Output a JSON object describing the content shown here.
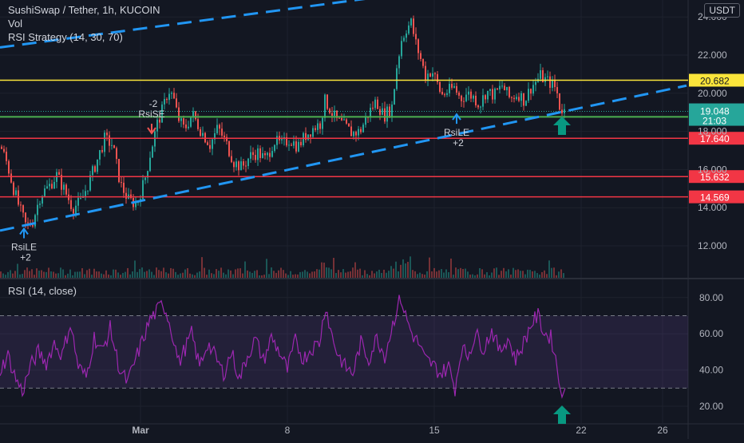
{
  "header": {
    "symbol_line": "SushiSwap / Tether, 1h, KUCOIN",
    "vol_label": "Vol",
    "strategy_label": "RSI Strategy (14, 30, 70)",
    "currency_button": "USDT"
  },
  "rsi_pane": {
    "label": "RSI (14, close)"
  },
  "colors": {
    "background": "#131722",
    "grid": "#1e222d",
    "axis_text": "#b2b5be",
    "up": "#26a69a",
    "down": "#ef5350",
    "trend_channel": "#2196f3",
    "resistance": "#fbe53b",
    "support": "#4caf50",
    "levels": "#f23645",
    "rsi_line": "#9c27b0",
    "rsi_band": "rgba(126,87,194,0.15)",
    "arrow": "#089981"
  },
  "chart_data": [
    {
      "type": "candlestick",
      "ylim": [
        11.2,
        25
      ],
      "yticks": [
        "12.000",
        "14.000",
        "16.000",
        "18.000",
        "20.000",
        "22.000",
        "24.000"
      ],
      "xticks": [
        "Mar",
        "8",
        "15",
        "22",
        "26"
      ],
      "price_series": [
        [
          0,
          17.2
        ],
        [
          8,
          16.3
        ],
        [
          16,
          15.0
        ],
        [
          24,
          13.9
        ],
        [
          32,
          13.0
        ],
        [
          40,
          13.3
        ],
        [
          50,
          14.7
        ],
        [
          60,
          15.1
        ],
        [
          70,
          15.7
        ],
        [
          80,
          14.9
        ],
        [
          90,
          14.0
        ],
        [
          100,
          14.3
        ],
        [
          110,
          15.3
        ],
        [
          120,
          16.4
        ],
        [
          130,
          17.6
        ],
        [
          140,
          17.3
        ],
        [
          150,
          15.2
        ],
        [
          160,
          14.4
        ],
        [
          170,
          14.2
        ],
        [
          180,
          15.4
        ],
        [
          188,
          17.0
        ],
        [
          196,
          18.4
        ],
        [
          204,
          19.3
        ],
        [
          210,
          20.2
        ],
        [
          216,
          19.8
        ],
        [
          222,
          18.7
        ],
        [
          230,
          18.1
        ],
        [
          240,
          18.9
        ],
        [
          250,
          18.1
        ],
        [
          262,
          17.3
        ],
        [
          272,
          18.2
        ],
        [
          282,
          17.4
        ],
        [
          292,
          16.4
        ],
        [
          302,
          16.1
        ],
        [
          312,
          16.7
        ],
        [
          322,
          16.9
        ],
        [
          332,
          16.5
        ],
        [
          342,
          17.5
        ],
        [
          352,
          17.3
        ],
        [
          362,
          17.6
        ],
        [
          372,
          17.2
        ],
        [
          382,
          17.8
        ],
        [
          392,
          18.2
        ],
        [
          400,
          18.4
        ],
        [
          406,
          19.6
        ],
        [
          412,
          19.2
        ],
        [
          420,
          18.6
        ],
        [
          430,
          18.3
        ],
        [
          440,
          17.9
        ],
        [
          450,
          18.0
        ],
        [
          460,
          18.9
        ],
        [
          470,
          19.6
        ],
        [
          480,
          18.8
        ],
        [
          490,
          19.3
        ],
        [
          496,
          21.4
        ],
        [
          502,
          22.8
        ],
        [
          508,
          23.4
        ],
        [
          514,
          23.7
        ],
        [
          520,
          22.6
        ],
        [
          526,
          21.8
        ],
        [
          532,
          20.9
        ],
        [
          540,
          21.2
        ],
        [
          546,
          20.6
        ],
        [
          552,
          19.9
        ],
        [
          560,
          20.1
        ],
        [
          568,
          20.3
        ],
        [
          576,
          19.7
        ],
        [
          584,
          20.0
        ],
        [
          592,
          19.8
        ],
        [
          600,
          19.4
        ],
        [
          608,
          20.1
        ],
        [
          618,
          19.9
        ],
        [
          628,
          20.4
        ],
        [
          638,
          19.7
        ],
        [
          648,
          20.0
        ],
        [
          656,
          19.6
        ],
        [
          664,
          20.3
        ],
        [
          670,
          20.6
        ],
        [
          676,
          20.9
        ],
        [
          682,
          20.7
        ],
        [
          690,
          20.5
        ],
        [
          696,
          20.2
        ],
        [
          700,
          19.3
        ],
        [
          706,
          19.05
        ]
      ],
      "horizontal_levels": [
        {
          "price": 20.682,
          "label": "20.682",
          "role": "resistance"
        },
        {
          "price": 18.762,
          "label": "18.762",
          "role": "support"
        },
        {
          "price": 17.64,
          "label": "17.640",
          "role": "levels"
        },
        {
          "price": 15.632,
          "label": "15.632",
          "role": "levels"
        },
        {
          "price": 14.569,
          "label": "14.569",
          "role": "levels"
        }
      ],
      "current_price": {
        "value": "19.048",
        "countdown": "21:03"
      },
      "trend_channel": {
        "upper": [
          [
            0,
            22.4
          ],
          [
            700,
            26.3
          ]
        ],
        "lower": [
          [
            0,
            12.8
          ],
          [
            860,
            20.4
          ]
        ]
      },
      "signals": [
        {
          "label": "RsiLE",
          "qty": "+2",
          "x": 30,
          "price": 12.9,
          "dir": "long"
        },
        {
          "label": "RsiSE",
          "qty": "-2",
          "x": 190,
          "price": 17.9,
          "dir": "short"
        },
        {
          "label": "RsiLE",
          "qty": "+2",
          "x": 572,
          "price": 18.9,
          "dir": "long"
        }
      ]
    },
    {
      "type": "line",
      "title": "RSI (14, close)",
      "ylim": [
        14,
        85
      ],
      "yticks": [
        "20.00",
        "40.00",
        "60.00",
        "80.00"
      ],
      "bands": [
        30,
        70
      ],
      "series": [
        {
          "values": [
            [
              0,
              40
            ],
            [
              10,
              48
            ],
            [
              20,
              35
            ],
            [
              28,
              28
            ],
            [
              38,
              42
            ],
            [
              48,
              50
            ],
            [
              58,
              44
            ],
            [
              68,
              55
            ],
            [
              78,
              48
            ],
            [
              88,
              66
            ],
            [
              98,
              42
            ],
            [
              108,
              36
            ],
            [
              118,
              58
            ],
            [
              128,
              50
            ],
            [
              138,
              63
            ],
            [
              150,
              40
            ],
            [
              160,
              33
            ],
            [
              170,
              46
            ],
            [
              180,
              58
            ],
            [
              188,
              68
            ],
            [
              196,
              72
            ],
            [
              204,
              77
            ],
            [
              210,
              70
            ],
            [
              216,
              60
            ],
            [
              224,
              44
            ],
            [
              232,
              52
            ],
            [
              240,
              60
            ],
            [
              250,
              42
            ],
            [
              260,
              55
            ],
            [
              270,
              47
            ],
            [
              280,
              38
            ],
            [
              290,
              50
            ],
            [
              300,
              35
            ],
            [
              310,
              48
            ],
            [
              320,
              57
            ],
            [
              330,
              45
            ],
            [
              340,
              58
            ],
            [
              350,
              50
            ],
            [
              360,
              40
            ],
            [
              370,
              56
            ],
            [
              380,
              46
            ],
            [
              390,
              52
            ],
            [
              400,
              55
            ],
            [
              408,
              76
            ],
            [
              414,
              62
            ],
            [
              422,
              50
            ],
            [
              432,
              42
            ],
            [
              442,
              38
            ],
            [
              452,
              55
            ],
            [
              462,
              46
            ],
            [
              472,
              58
            ],
            [
              482,
              48
            ],
            [
              490,
              62
            ],
            [
              496,
              72
            ],
            [
              502,
              80
            ],
            [
              508,
              70
            ],
            [
              516,
              60
            ],
            [
              524,
              55
            ],
            [
              532,
              46
            ],
            [
              542,
              43
            ],
            [
              552,
              38
            ],
            [
              562,
              42
            ],
            [
              570,
              30
            ],
            [
              578,
              52
            ],
            [
              586,
              48
            ],
            [
              596,
              60
            ],
            [
              606,
              52
            ],
            [
              616,
              62
            ],
            [
              626,
              50
            ],
            [
              636,
              58
            ],
            [
              646,
              46
            ],
            [
              656,
              55
            ],
            [
              666,
              66
            ],
            [
              674,
              70
            ],
            [
              682,
              60
            ],
            [
              690,
              58
            ],
            [
              696,
              48
            ],
            [
              700,
              33
            ],
            [
              704,
              25
            ],
            [
              708,
              30
            ]
          ]
        }
      ]
    }
  ]
}
